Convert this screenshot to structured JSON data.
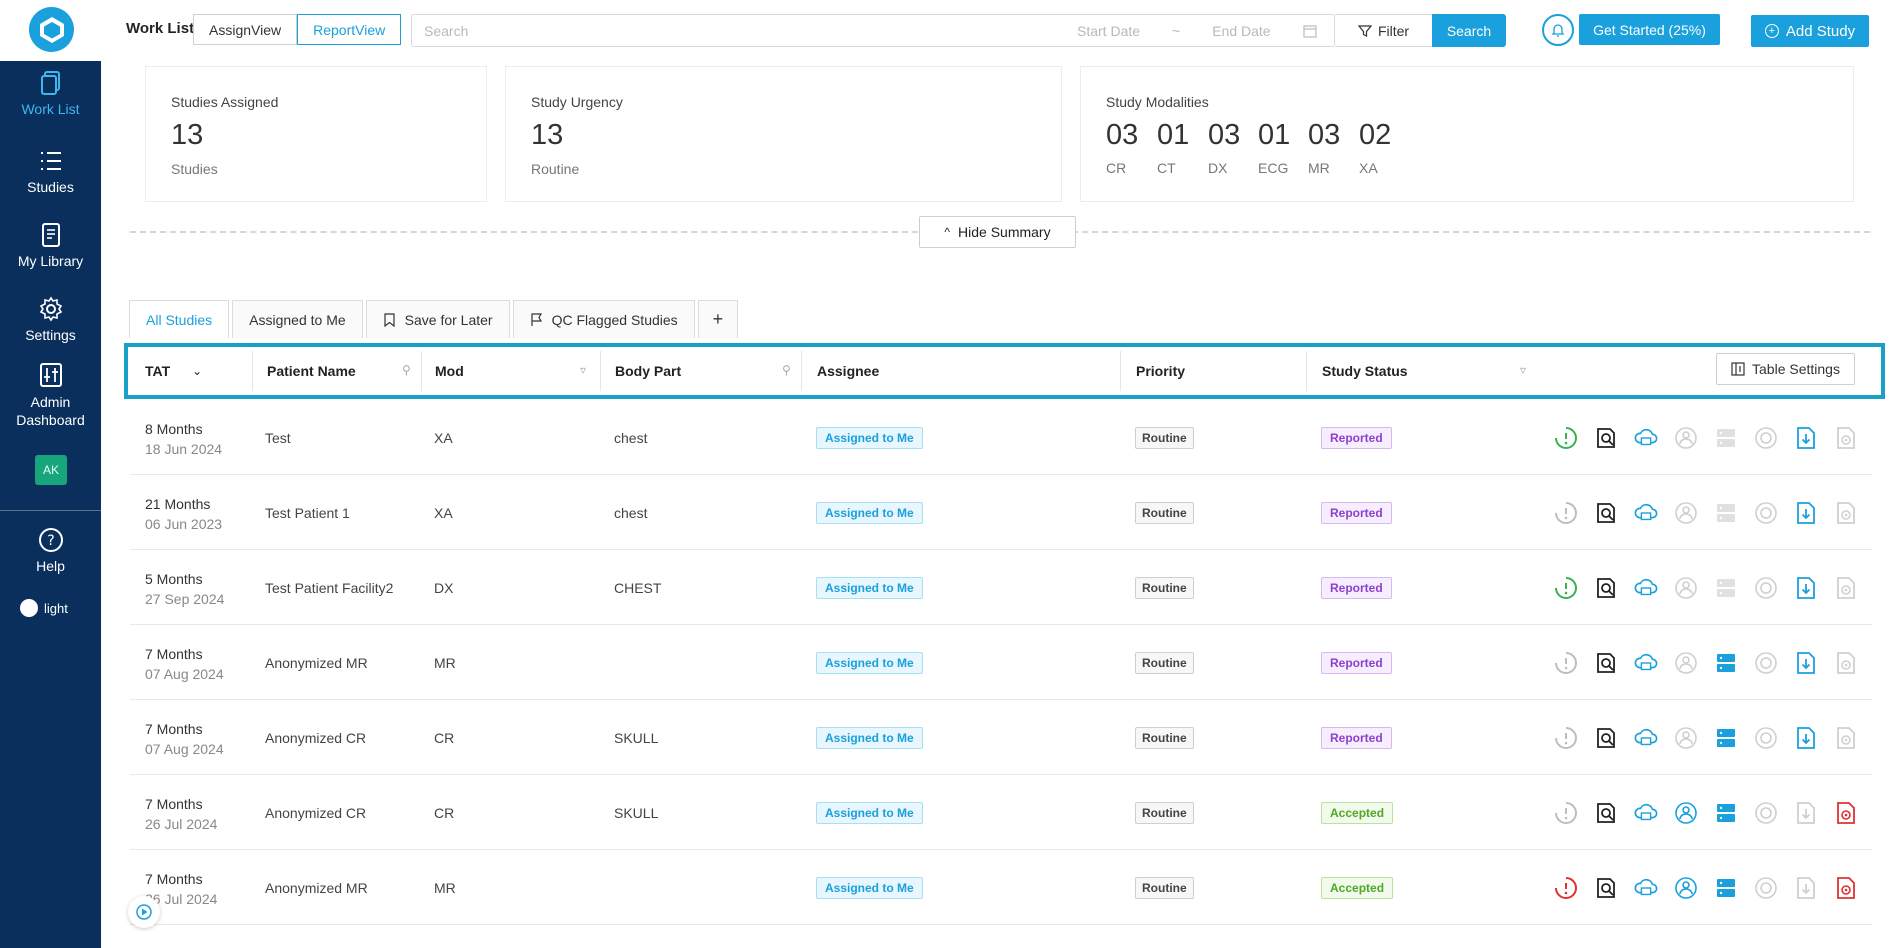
{
  "sidebar": {
    "items": [
      {
        "label": "Work List",
        "icon": "worklist-icon"
      },
      {
        "label": "Studies",
        "icon": "list-icon"
      },
      {
        "label": "My Library",
        "icon": "library-icon"
      },
      {
        "label": "Settings",
        "icon": "gear-icon"
      },
      {
        "label": "Admin Dashboard",
        "icon": "sliders-icon"
      }
    ],
    "avatar": "AK",
    "help": "Help",
    "theme": "light"
  },
  "topbar": {
    "worklist_label": "Work List",
    "views": [
      "AssignView",
      "ReportView"
    ],
    "search_placeholder": "Search",
    "start_date_placeholder": "Start Date",
    "date_separator": "~",
    "end_date_placeholder": "End Date",
    "filter_label": "Filter",
    "search_label": "Search",
    "get_started_label": "Get Started (25%)",
    "add_study_label": "Add Study"
  },
  "summary": {
    "assigned": {
      "title": "Studies Assigned",
      "value": "13",
      "sub": "Studies"
    },
    "urgency": {
      "title": "Study Urgency",
      "value": "13",
      "sub": "Routine"
    },
    "modalities": {
      "title": "Study Modalities",
      "items": [
        {
          "value": "03",
          "label": "CR"
        },
        {
          "value": "01",
          "label": "CT"
        },
        {
          "value": "03",
          "label": "DX"
        },
        {
          "value": "01",
          "label": "ECG"
        },
        {
          "value": "03",
          "label": "MR"
        },
        {
          "value": "02",
          "label": "XA"
        }
      ]
    },
    "hide_label": "Hide Summary"
  },
  "tabs": [
    "All Studies",
    "Assigned to Me",
    "Save for Later",
    "QC Flagged Studies",
    "+"
  ],
  "table": {
    "headers": [
      "TAT",
      "Patient Name",
      "Mod",
      "Body Part",
      "Assignee",
      "Priority",
      "Study Status"
    ],
    "settings_label": "Table Settings",
    "rows": [
      {
        "tat": "8 Months",
        "date": "18 Jun 2024",
        "patient": "Test",
        "mod": "XA",
        "body": "chest",
        "assignee": "Assigned to Me",
        "priority": "Routine",
        "status": "Reported",
        "status_kind": "reported",
        "clock": "#37b24d",
        "user": "#cfcfcf",
        "server": "#e0e0e0",
        "down": "#1aa0dc",
        "last": "#d0d0d0"
      },
      {
        "tat": "21 Months",
        "date": "06 Jun 2023",
        "patient": "Test Patient 1",
        "mod": "XA",
        "body": "chest",
        "assignee": "Assigned to Me",
        "priority": "Routine",
        "status": "Reported",
        "status_kind": "reported",
        "clock": "#bdbdbd",
        "user": "#cfcfcf",
        "server": "#e0e0e0",
        "down": "#1aa0dc",
        "last": "#d0d0d0"
      },
      {
        "tat": "5 Months",
        "date": "27 Sep 2024",
        "patient": "Test Patient Facility2",
        "mod": "DX",
        "body": "CHEST",
        "assignee": "Assigned to Me",
        "priority": "Routine",
        "status": "Reported",
        "status_kind": "reported",
        "clock": "#37b24d",
        "user": "#cfcfcf",
        "server": "#e0e0e0",
        "down": "#1aa0dc",
        "last": "#d0d0d0"
      },
      {
        "tat": "7 Months",
        "date": "07 Aug 2024",
        "patient": "Anonymized MR",
        "mod": "MR",
        "body": "",
        "assignee": "Assigned to Me",
        "priority": "Routine",
        "status": "Reported",
        "status_kind": "reported",
        "clock": "#bdbdbd",
        "user": "#cfcfcf",
        "server": "#1aa0dc",
        "down": "#1aa0dc",
        "last": "#d0d0d0"
      },
      {
        "tat": "7 Months",
        "date": "07 Aug 2024",
        "patient": "Anonymized CR",
        "mod": "CR",
        "body": "SKULL",
        "assignee": "Assigned to Me",
        "priority": "Routine",
        "status": "Reported",
        "status_kind": "reported",
        "clock": "#bdbdbd",
        "user": "#cfcfcf",
        "server": "#1aa0dc",
        "down": "#1aa0dc",
        "last": "#d0d0d0"
      },
      {
        "tat": "7 Months",
        "date": "26 Jul 2024",
        "patient": "Anonymized CR",
        "mod": "CR",
        "body": "SKULL",
        "assignee": "Assigned to Me",
        "priority": "Routine",
        "status": "Accepted",
        "status_kind": "accepted",
        "clock": "#bdbdbd",
        "user": "#1aa0dc",
        "server": "#1aa0dc",
        "down": "#cfcfcf",
        "last": "#e03131"
      },
      {
        "tat": "7 Months",
        "date": "26 Jul 2024",
        "patient": "Anonymized MR",
        "mod": "MR",
        "body": "",
        "assignee": "Assigned to Me",
        "priority": "Routine",
        "status": "Accepted",
        "status_kind": "accepted",
        "clock": "#e03131",
        "user": "#1aa0dc",
        "server": "#1aa0dc",
        "down": "#cfcfcf",
        "last": "#e03131"
      }
    ]
  }
}
